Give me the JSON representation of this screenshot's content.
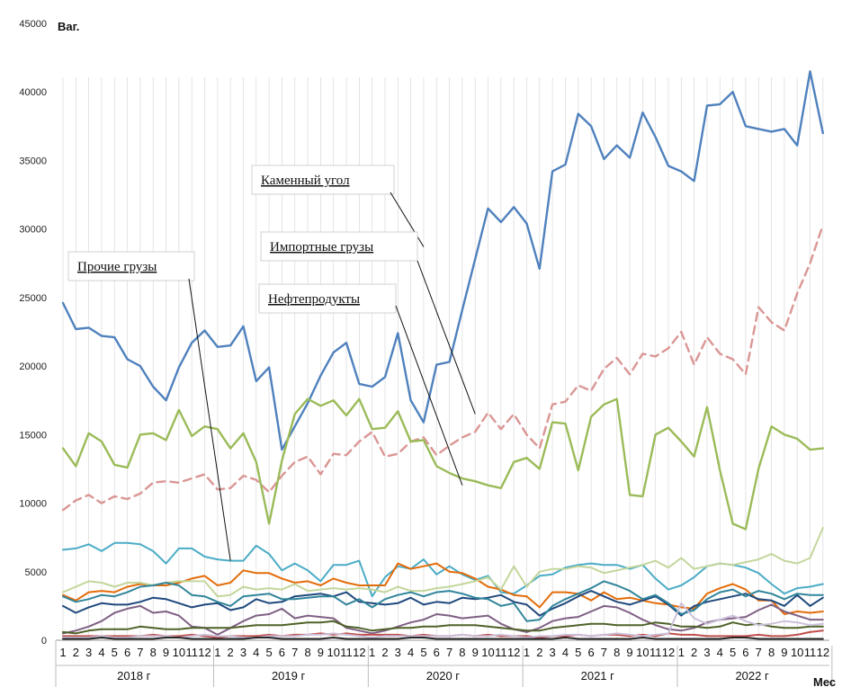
{
  "chart_data": {
    "type": "line",
    "ylabel": "Ваг.",
    "xlabel": "Мес",
    "ylim": [
      0,
      45000
    ],
    "yticks": [
      0,
      5000,
      10000,
      15000,
      20000,
      25000,
      30000,
      35000,
      40000,
      45000
    ],
    "xlim": [
      1,
      60
    ],
    "grid": "vertical",
    "legend": "annotations",
    "month_labels": [
      "1",
      "2",
      "3",
      "4",
      "5",
      "6",
      "7",
      "8",
      "9",
      "10",
      "11",
      "12",
      "1",
      "2",
      "3",
      "4",
      "5",
      "6",
      "7",
      "8",
      "9",
      "10",
      "11",
      "12",
      "1",
      "2",
      "3",
      "4",
      "5",
      "6",
      "7",
      "8",
      "9",
      "10",
      "11",
      "12",
      "1",
      "2",
      "3",
      "4",
      "5",
      "6",
      "7",
      "8",
      "9",
      "10",
      "11",
      "12",
      "1",
      "2",
      "3",
      "4",
      "5",
      "6",
      "7",
      "8",
      "9",
      "10",
      "11",
      "12"
    ],
    "year_labels": [
      "2018 г",
      "2019 г",
      "2020 г",
      "2021 г",
      "2022 г"
    ],
    "annotations": [
      {
        "text": "Каменный угол",
        "target_series": 0,
        "target_x": 29,
        "target_y": 28700
      },
      {
        "text": "Импортные грузы",
        "target_series": 1,
        "target_x": 33,
        "target_y": 16500
      },
      {
        "text": "Нефтепродукты",
        "target_series": 2,
        "target_x": 32,
        "target_y": 11300
      },
      {
        "text": "Прочие грузы",
        "target_series": 3,
        "target_x": 14,
        "target_y": 5800
      }
    ],
    "series": [
      {
        "color": "#4f81bd",
        "dash": false,
        "values": [
          24600,
          22700,
          22800,
          22200,
          22100,
          20500,
          20000,
          18500,
          17500,
          19900,
          21700,
          22600,
          21400,
          21500,
          22900,
          18900,
          19900,
          13900,
          15600,
          17300,
          19300,
          21000,
          21700,
          18700,
          18500,
          19200,
          22400,
          17500,
          15900,
          20100,
          20300,
          24100,
          27800,
          31500,
          30500,
          31600,
          30400,
          27100,
          34200,
          34700,
          38400,
          37500,
          35100,
          36100,
          35200,
          38500,
          36700,
          34600,
          34200,
          33500,
          39000,
          39100,
          40000,
          37500,
          37300,
          37100,
          37300,
          36100,
          41500,
          37000
        ]
      },
      {
        "color": "#da9694",
        "dash": true,
        "values": [
          9500,
          10200,
          10600,
          10000,
          10500,
          10300,
          10700,
          11500,
          11600,
          11500,
          11800,
          12100,
          11000,
          11100,
          12000,
          11700,
          10800,
          12000,
          13000,
          13400,
          12100,
          13600,
          13500,
          14500,
          15200,
          13400,
          13600,
          14500,
          14800,
          13500,
          14200,
          14800,
          15200,
          16600,
          15400,
          16500,
          15000,
          14000,
          17200,
          17400,
          18600,
          18200,
          19800,
          20600,
          19400,
          20900,
          20700,
          21300,
          22500,
          20100,
          22100,
          20900,
          20500,
          19400,
          24300,
          23200,
          22600,
          25300,
          27500,
          30300
        ]
      },
      {
        "color": "#9bbb59",
        "dash": false,
        "values": [
          14000,
          12700,
          15100,
          14500,
          12800,
          12600,
          15000,
          15100,
          14600,
          16800,
          14900,
          15600,
          15400,
          14000,
          15100,
          13000,
          8500,
          13100,
          16500,
          17600,
          17100,
          17500,
          16400,
          17600,
          15400,
          15500,
          16700,
          14500,
          14600,
          12700,
          12200,
          11800,
          11600,
          11300,
          11100,
          13000,
          13300,
          12500,
          15900,
          15800,
          12400,
          16300,
          17200,
          17600,
          10600,
          10500,
          15000,
          15500,
          14500,
          13400,
          17000,
          12400,
          8500,
          8100,
          12500,
          15600,
          15000,
          14700,
          13900,
          14000
        ]
      },
      {
        "color": "#4bacc6",
        "dash": false,
        "values": [
          6600,
          6700,
          7000,
          6500,
          7100,
          7100,
          7000,
          6500,
          5600,
          6700,
          6700,
          6100,
          5900,
          5800,
          5800,
          6900,
          6300,
          5100,
          5600,
          5100,
          4300,
          5500,
          5500,
          5800,
          3200,
          4600,
          5400,
          5200,
          5900,
          4800,
          5400,
          4800,
          4400,
          4700,
          3500,
          3400,
          4000,
          4700,
          4800,
          5300,
          5500,
          5600,
          5500,
          5500,
          5200,
          5500,
          4500,
          3700,
          4000,
          4600,
          5400,
          5600,
          5500,
          5300,
          4900,
          4100,
          3400,
          3800,
          3900,
          4100
        ]
      },
      {
        "color": "#e36c0a",
        "dash": false,
        "values": [
          3300,
          2900,
          3500,
          3600,
          3500,
          3900,
          4100,
          4000,
          4000,
          4200,
          4500,
          4700,
          4000,
          4200,
          5100,
          4900,
          4900,
          4500,
          4200,
          4300,
          4000,
          4500,
          4200,
          4000,
          4000,
          4000,
          5600,
          5200,
          5400,
          5600,
          5000,
          4900,
          4500,
          3900,
          3700,
          3300,
          3200,
          2400,
          3500,
          3500,
          3400,
          2900,
          3500,
          3000,
          3100,
          2900,
          2700,
          2600,
          2400,
          2300,
          3400,
          3800,
          4100,
          3700,
          2900,
          2900,
          1900,
          2100,
          2000,
          2100
        ]
      },
      {
        "color": "#c3d69b",
        "dash": false,
        "values": [
          3500,
          3900,
          4300,
          4200,
          3900,
          4200,
          4200,
          4000,
          4200,
          4300,
          4300,
          4300,
          3200,
          3300,
          3900,
          3700,
          3800,
          3700,
          4100,
          3600,
          3700,
          3800,
          3700,
          3800,
          3700,
          3500,
          3900,
          3600,
          3600,
          3800,
          3900,
          4100,
          4300,
          4600,
          3700,
          5400,
          3900,
          5000,
          5200,
          5200,
          5400,
          5300,
          4900,
          5100,
          5300,
          5500,
          5800,
          5300,
          6000,
          5200,
          5400,
          5600,
          5500,
          5700,
          5900,
          6300,
          5800,
          5600,
          6000,
          8200
        ]
      },
      {
        "color": "#1f497d",
        "dash": false,
        "values": [
          2500,
          2000,
          2400,
          2700,
          2600,
          2600,
          2800,
          3100,
          3000,
          2700,
          2400,
          2600,
          2700,
          2200,
          2400,
          3000,
          2700,
          2800,
          3200,
          3300,
          3400,
          3200,
          3500,
          2800,
          2700,
          2600,
          2700,
          3100,
          2600,
          2800,
          2700,
          3100,
          3000,
          3100,
          3300,
          2800,
          2600,
          1800,
          2300,
          2700,
          3200,
          3600,
          3200,
          2800,
          2600,
          2900,
          3200,
          2600,
          1800,
          2500,
          2800,
          3000,
          3200,
          3400,
          3000,
          2900,
          2500,
          3300,
          2500,
          3100
        ]
      },
      {
        "color": "#31859b",
        "dash": false,
        "values": [
          3200,
          2800,
          3000,
          3300,
          3200,
          3500,
          3900,
          4000,
          4200,
          4000,
          3300,
          3200,
          2800,
          2500,
          3200,
          3300,
          3400,
          3000,
          3000,
          3100,
          3200,
          3200,
          2600,
          3000,
          2400,
          3000,
          3300,
          3500,
          3200,
          3500,
          3600,
          3400,
          3100,
          3000,
          2500,
          2700,
          1400,
          1500,
          2500,
          3000,
          3400,
          3800,
          4300,
          4000,
          3600,
          3000,
          3300,
          2700,
          1900,
          2200,
          3000,
          3500,
          3700,
          3200,
          3600,
          3400,
          3000,
          3400,
          3300,
          3300
        ]
      },
      {
        "color": "#7f6084",
        "dash": false,
        "values": [
          500,
          700,
          1000,
          1400,
          2000,
          2300,
          2500,
          2000,
          2100,
          1800,
          1000,
          900,
          400,
          900,
          1400,
          1800,
          1900,
          2300,
          1600,
          1800,
          1700,
          1600,
          900,
          700,
          500,
          700,
          1000,
          1300,
          1500,
          1900,
          1800,
          1600,
          1700,
          1800,
          1200,
          800,
          600,
          900,
          1400,
          1600,
          1700,
          2100,
          2500,
          2400,
          2000,
          1500,
          1100,
          800,
          700,
          900,
          1300,
          1500,
          1600,
          1700,
          2200,
          2600,
          2100,
          1800,
          1500,
          1500
        ]
      },
      {
        "color": "#4f6228",
        "dash": false,
        "values": [
          600,
          500,
          700,
          800,
          800,
          800,
          1000,
          900,
          800,
          800,
          900,
          900,
          900,
          900,
          1000,
          1100,
          1100,
          1100,
          1200,
          1300,
          1300,
          1400,
          1000,
          900,
          700,
          800,
          900,
          900,
          1000,
          1000,
          1100,
          1100,
          1100,
          1000,
          900,
          800,
          700,
          700,
          900,
          1000,
          1100,
          1200,
          1200,
          1100,
          1100,
          1100,
          1300,
          1200,
          1000,
          1000,
          900,
          1000,
          1300,
          1100,
          1200,
          1000,
          900,
          900,
          1000,
          1000
        ]
      },
      {
        "color": "#c0504d",
        "dash": false,
        "values": [
          300,
          300,
          300,
          300,
          300,
          300,
          300,
          400,
          300,
          300,
          400,
          300,
          200,
          300,
          300,
          300,
          400,
          300,
          400,
          400,
          500,
          400,
          500,
          400,
          400,
          400,
          400,
          300,
          400,
          300,
          300,
          400,
          300,
          400,
          300,
          300,
          300,
          200,
          300,
          300,
          400,
          300,
          400,
          400,
          300,
          400,
          300,
          500,
          400,
          400,
          300,
          300,
          300,
          300,
          400,
          300,
          300,
          400,
          600,
          700
        ]
      },
      {
        "color": "#ccc1da",
        "dash": false,
        "values": [
          200,
          200,
          200,
          300,
          200,
          200,
          300,
          300,
          300,
          200,
          300,
          400,
          300,
          300,
          200,
          200,
          300,
          300,
          300,
          400,
          400,
          500,
          400,
          300,
          200,
          300,
          300,
          300,
          300,
          300,
          300,
          400,
          300,
          300,
          400,
          300,
          200,
          300,
          300,
          400,
          400,
          300,
          400,
          500,
          400,
          300,
          400,
          500,
          2700,
          1600,
          1200,
          1500,
          1800,
          1400,
          1100,
          1200,
          1400,
          1300,
          1100,
          1200
        ]
      },
      {
        "color": "#262626",
        "dash": false,
        "values": [
          100,
          100,
          100,
          200,
          100,
          100,
          100,
          100,
          200,
          200,
          100,
          100,
          100,
          100,
          100,
          200,
          200,
          100,
          100,
          100,
          100,
          200,
          100,
          100,
          100,
          100,
          100,
          200,
          200,
          100,
          100,
          100,
          100,
          100,
          100,
          100,
          100,
          100,
          100,
          200,
          100,
          100,
          100,
          100,
          100,
          200,
          100,
          100,
          100,
          100,
          100,
          100,
          200,
          200,
          100,
          100,
          100,
          100,
          100,
          100
        ]
      }
    ]
  }
}
